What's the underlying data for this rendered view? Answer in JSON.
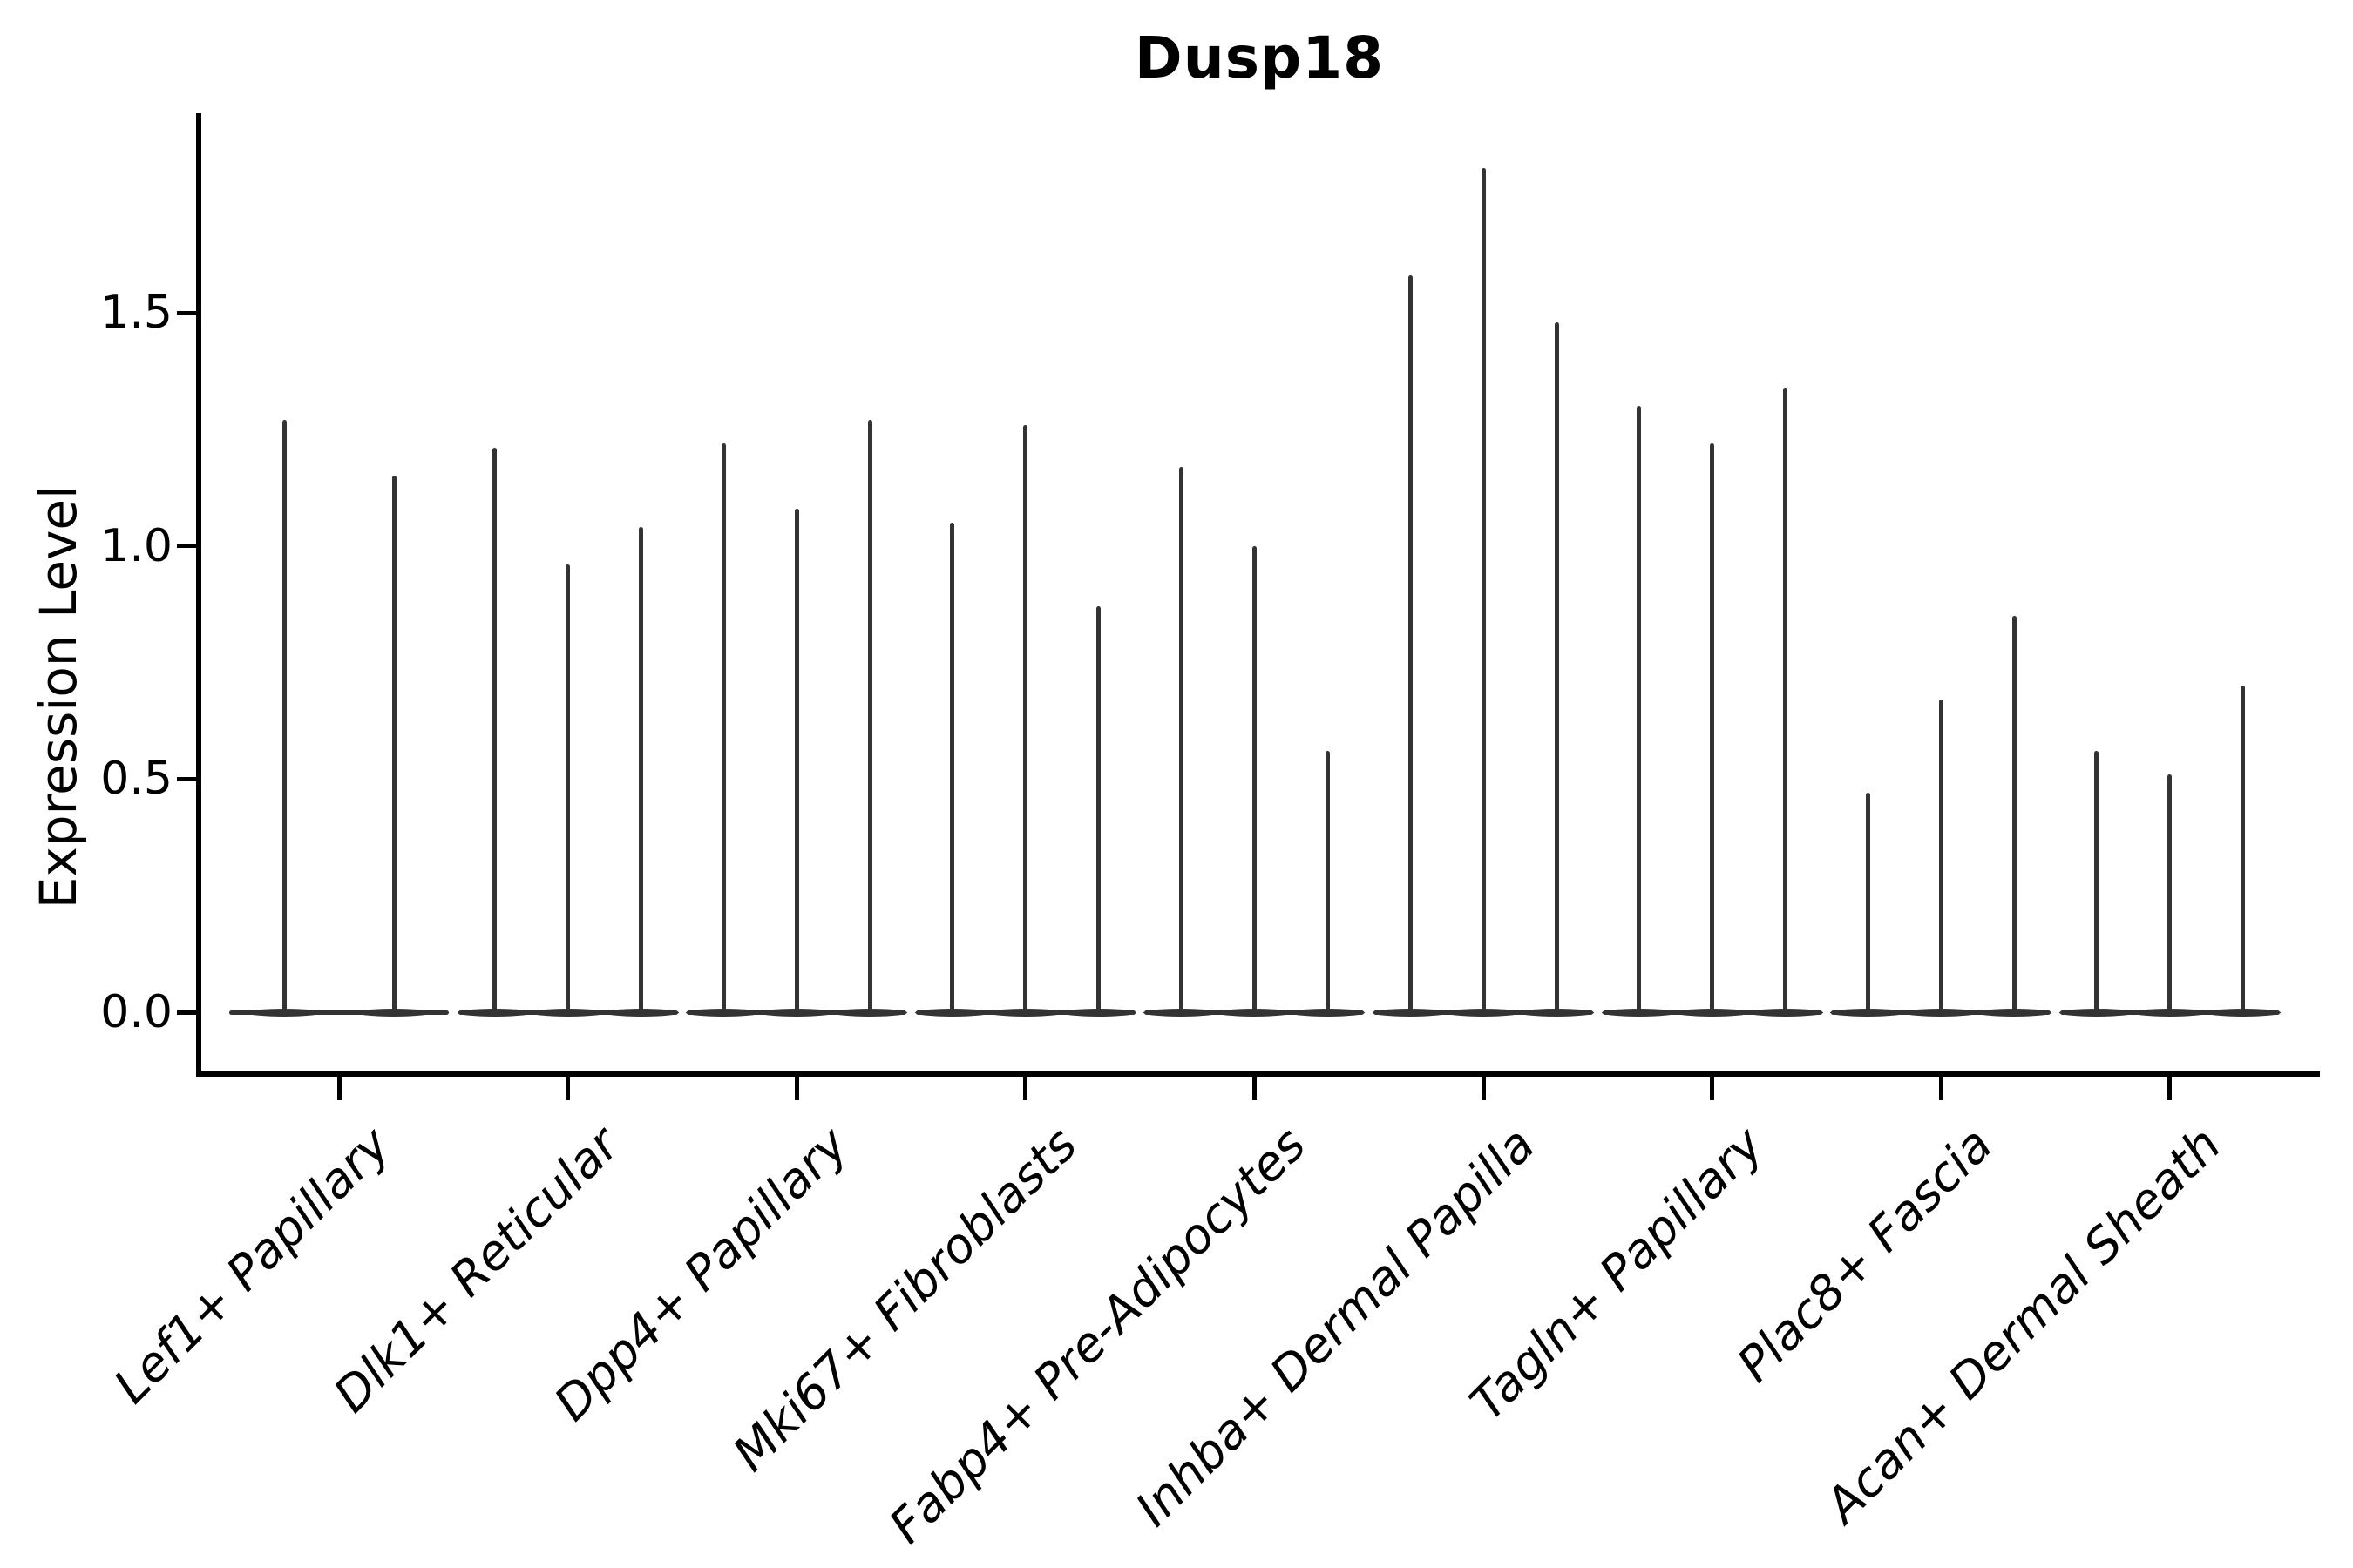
{
  "figure": {
    "title": "Dusp18",
    "ylabel": "Expression Level"
  },
  "chart_data": {
    "type": "violin",
    "title": "Dusp18",
    "xlabel": "",
    "ylabel": "Expression Level",
    "ylim": [
      0.0,
      1.93
    ],
    "yticks": [
      "0.0",
      "0.5",
      "1.0",
      "1.5"
    ],
    "ytick_values": [
      0.0,
      0.5,
      1.0,
      1.5
    ],
    "grid": false,
    "legend_position": "none",
    "categories": [
      "Lef1+ Papillary",
      "Dlk1+ Reticular",
      "Dpp4+ Papillary",
      "Mki67+ Fibroblasts",
      "Fabp4+ Pre-Adipocytes",
      "Inhba+ Dermal Papilla",
      "Tagln+ Papillary",
      "Plac8+ Fascia",
      "Acan+ Dermal Sheath"
    ],
    "series": [
      {
        "category": "Lef1+ Papillary",
        "violin_max_values": [
          1.27,
          1.15
        ]
      },
      {
        "category": "Dlk1+ Reticular",
        "violin_max_values": [
          1.21,
          0.96,
          1.04
        ]
      },
      {
        "category": "Dpp4+ Papillary",
        "violin_max_values": [
          1.22,
          1.08,
          1.27
        ]
      },
      {
        "category": "Mki67+ Fibroblasts",
        "violin_max_values": [
          1.05,
          1.26,
          0.87
        ]
      },
      {
        "category": "Fabp4+ Pre-Adipocytes",
        "violin_max_values": [
          1.17,
          1.0,
          0.56
        ]
      },
      {
        "category": "Inhba+ Dermal Papilla",
        "violin_max_values": [
          1.58,
          1.81,
          1.48
        ]
      },
      {
        "category": "Tagln+ Papillary",
        "violin_max_values": [
          1.3,
          1.22,
          1.34
        ]
      },
      {
        "category": "Plac8+ Fascia",
        "violin_max_values": [
          0.47,
          0.67,
          0.85
        ]
      },
      {
        "category": "Acan+ Dermal Sheath",
        "violin_max_values": [
          0.56,
          0.51,
          0.7
        ]
      }
    ],
    "baseline_value": 0.0,
    "colors": {
      "violin": "#333333",
      "axis": "#000000",
      "text": "#000000",
      "background": "#ffffff"
    }
  }
}
